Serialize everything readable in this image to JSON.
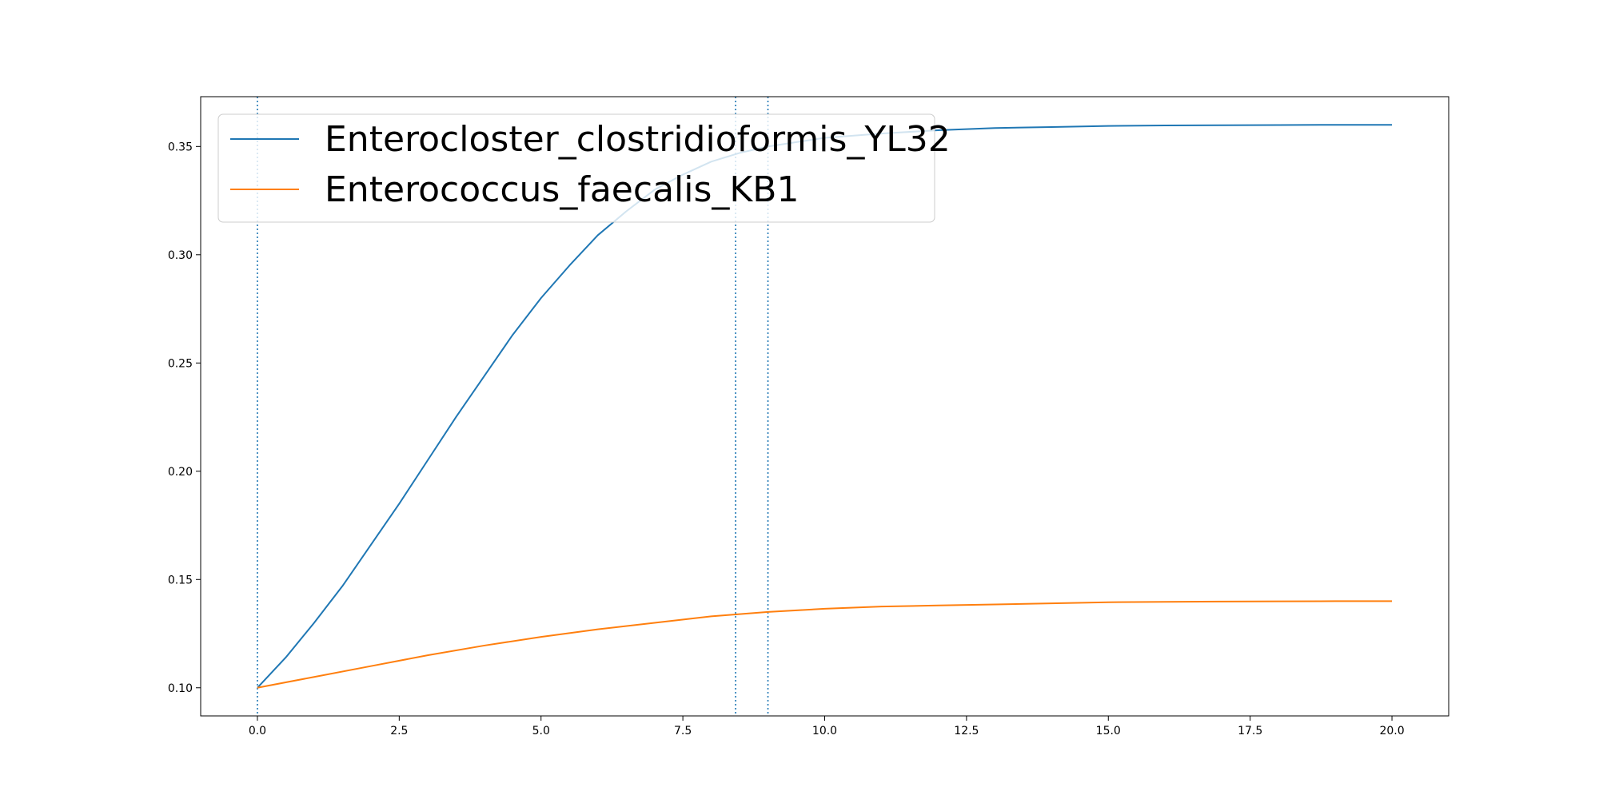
{
  "chart_data": {
    "type": "line",
    "title": "",
    "xlabel": "",
    "ylabel": "",
    "xlim": [
      -1.0,
      21.0
    ],
    "ylim": [
      0.087,
      0.373
    ],
    "x_ticks": [
      0.0,
      2.5,
      5.0,
      7.5,
      10.0,
      12.5,
      15.0,
      17.5,
      20.0
    ],
    "x_tick_labels": [
      "0.0",
      "2.5",
      "5.0",
      "7.5",
      "10.0",
      "12.5",
      "15.0",
      "17.5",
      "20.0"
    ],
    "y_ticks": [
      0.1,
      0.15,
      0.2,
      0.25,
      0.3,
      0.35
    ],
    "y_tick_labels": [
      "0.10",
      "0.15",
      "0.20",
      "0.25",
      "0.30",
      "0.35"
    ],
    "grid": false,
    "legend_position": "top-left",
    "vertical_lines": [
      {
        "x": 0.0,
        "color": "#1f77b4",
        "style": "dotted"
      },
      {
        "x": 8.43,
        "color": "#1f77b4",
        "style": "dotted"
      },
      {
        "x": 9.0,
        "color": "#1f77b4",
        "style": "dotted"
      }
    ],
    "series": [
      {
        "name": "Enterocloster_clostridioformis_YL32",
        "color": "#1f77b4",
        "x": [
          0,
          0.5,
          1,
          1.5,
          2,
          2.5,
          3,
          3.5,
          4,
          4.5,
          5,
          5.5,
          6,
          6.5,
          7,
          7.5,
          8,
          8.5,
          9,
          9.5,
          10,
          11,
          12,
          13,
          14,
          15,
          16,
          17,
          18,
          19,
          20
        ],
        "values": [
          0.1,
          0.114,
          0.13,
          0.147,
          0.166,
          0.185,
          0.205,
          0.225,
          0.244,
          0.263,
          0.28,
          0.295,
          0.309,
          0.32,
          0.33,
          0.337,
          0.343,
          0.347,
          0.35,
          0.352,
          0.354,
          0.356,
          0.3575,
          0.3585,
          0.359,
          0.3595,
          0.3597,
          0.3598,
          0.3599,
          0.36,
          0.36
        ]
      },
      {
        "name": "Enterococcus_faecalis_KB1",
        "color": "#ff7f0e",
        "x": [
          0,
          1,
          2,
          3,
          4,
          5,
          6,
          7,
          8,
          9,
          10,
          11,
          12,
          13,
          14,
          15,
          16,
          17,
          18,
          19,
          20
        ],
        "values": [
          0.1,
          0.105,
          0.11,
          0.115,
          0.1195,
          0.1235,
          0.127,
          0.13,
          0.133,
          0.135,
          0.1365,
          0.1375,
          0.138,
          0.1385,
          0.139,
          0.1395,
          0.1397,
          0.1398,
          0.1399,
          0.14,
          0.14
        ]
      }
    ]
  }
}
